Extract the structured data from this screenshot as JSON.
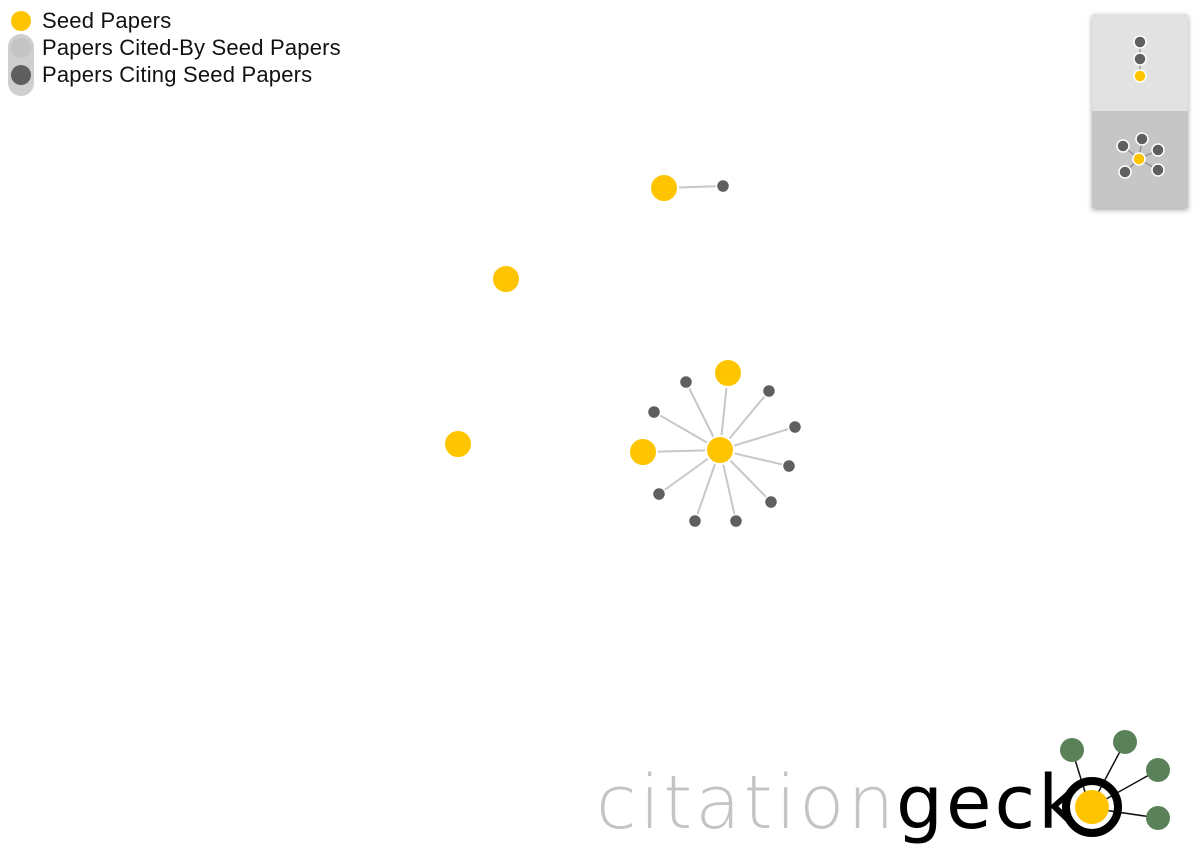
{
  "legend": {
    "items": [
      {
        "label": "Seed Papers",
        "color": "#FFC400"
      },
      {
        "label": "Papers Cited-By Seed Papers",
        "color": "#C4C4C4"
      },
      {
        "label": "Papers Citing Seed Papers",
        "color": "#5F5F5F"
      }
    ]
  },
  "colors": {
    "seed": "#FFC400",
    "citing": "#5F5F5F",
    "edge": "#C8C8C8",
    "panel_top": "#E2E2E2",
    "panel_bottom": "#C6C6C6",
    "logo_gray": "#C4C4C4",
    "logo_black": "#000000",
    "logo_green": "#5B8159"
  },
  "layout_panel": {
    "buttons": [
      {
        "name": "hierarchy-layout-icon"
      },
      {
        "name": "force-layout-icon"
      }
    ]
  },
  "logo": {
    "word1": "citation",
    "word2": "geck"
  }
}
